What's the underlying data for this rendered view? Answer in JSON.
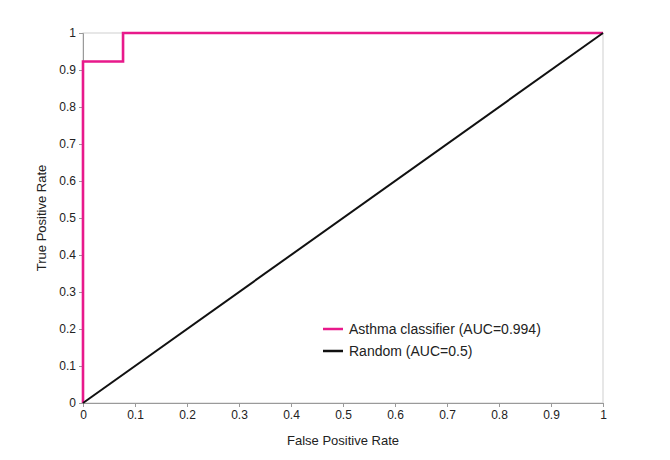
{
  "chart_data": {
    "type": "line",
    "x_label": "False Positive Rate",
    "y_label": "True Positive Rate",
    "xlim": [
      0,
      1
    ],
    "ylim": [
      0,
      1
    ],
    "xticks": [
      0,
      0.1,
      0.2,
      0.3,
      0.4,
      0.5,
      0.6,
      0.7,
      0.8,
      0.9,
      1
    ],
    "yticks": [
      0,
      0.1,
      0.2,
      0.3,
      0.4,
      0.5,
      0.6,
      0.7,
      0.8,
      0.9,
      1
    ],
    "grid": false,
    "legend": "lower right",
    "series": [
      {
        "name": "Asthma classifier (AUC=0.994)",
        "color": "#e8198b",
        "line_style": "solid",
        "x": [
          0,
          0,
          0.077,
          0.077,
          1
        ],
        "values": [
          0,
          0.923,
          0.923,
          1,
          1
        ]
      },
      {
        "name": "Random (AUC=0.5)",
        "color": "#111111",
        "line_style": "solid",
        "x": [
          0,
          1
        ],
        "values": [
          0,
          1
        ]
      }
    ]
  }
}
